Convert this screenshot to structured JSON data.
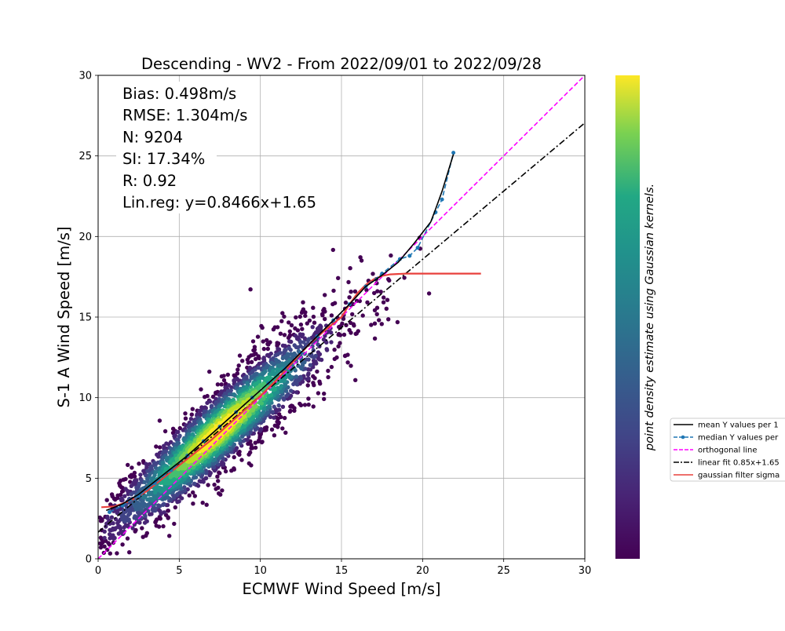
{
  "chart_data": {
    "type": "scatter",
    "title": "Descending - WV2 - From 2022/09/01 to 2022/09/28",
    "xlabel": "ECMWF Wind Speed [m/s]",
    "ylabel": "S-1 A Wind Speed [m/s]",
    "xlim": [
      0,
      30
    ],
    "ylim": [
      0,
      30
    ],
    "xticks": [
      "0",
      "5",
      "10",
      "15",
      "20",
      "25",
      "30"
    ],
    "yticks": [
      "0",
      "5",
      "10",
      "15",
      "20",
      "25",
      "30"
    ],
    "grid": true,
    "colormap": "viridis",
    "colorbar_label": "point density estimate using Gaussian kernels.",
    "legend_placement": "right, outside plot",
    "stats": [
      "Bias: 0.498m/s",
      "RMSE: 1.304m/s",
      "N: 9204",
      "SI: 17.34%",
      "R: 0.92",
      "Lin.reg: y=0.8466x+1.65"
    ],
    "series": [
      {
        "name": "mean Y values per 1",
        "style": "solid",
        "color": "#000000",
        "x": [
          0.5,
          1.5,
          2.5,
          3.5,
          4.5,
          5.5,
          6.5,
          7.5,
          8.5,
          9.5,
          10.5,
          11.5,
          12.5,
          13.5,
          14.5,
          15.5,
          16.5,
          17.5,
          18.5,
          19.5,
          20.5,
          20.8,
          21.2,
          21.9
        ],
        "y": [
          3.0,
          3.4,
          4.0,
          4.8,
          5.6,
          6.4,
          7.3,
          8.2,
          9.1,
          10.0,
          10.9,
          11.8,
          12.8,
          13.8,
          14.8,
          15.8,
          16.9,
          17.6,
          18.4,
          19.6,
          20.9,
          21.7,
          22.8,
          25.1
        ]
      },
      {
        "name": "median Y values per",
        "style": "dashed-marker",
        "color": "#1f77b4",
        "x": [
          0.7,
          1.5,
          2.5,
          3.5,
          4.5,
          5.5,
          6.5,
          7.5,
          8.5,
          9.5,
          10.5,
          11.5,
          12.5,
          13.5,
          14.5,
          15.5,
          16.5,
          17.5,
          18.6,
          19.2,
          19.7,
          20.8,
          21.2,
          21.9
        ],
        "y": [
          2.9,
          3.3,
          3.9,
          4.7,
          5.5,
          6.4,
          7.3,
          8.2,
          9.1,
          10.0,
          10.9,
          11.8,
          12.8,
          13.8,
          14.8,
          15.8,
          16.9,
          17.7,
          18.6,
          18.8,
          19.3,
          21.5,
          22.3,
          25.2
        ]
      },
      {
        "name": "orthogonal line",
        "style": "dashed",
        "color": "#ff00ff",
        "x": [
          0,
          30
        ],
        "y": [
          0,
          30
        ]
      },
      {
        "name": "linear fit 0.85x+1.65",
        "style": "dashdot",
        "color": "#000000",
        "x": [
          0,
          30
        ],
        "y": [
          1.65,
          27.05
        ]
      },
      {
        "name": "gaussian filter sigma",
        "style": "solid",
        "color": "#e8413c",
        "x": [
          0.2,
          1,
          2,
          3,
          4,
          5,
          6,
          7,
          8,
          9,
          10,
          11,
          12,
          13,
          14,
          15,
          15.5,
          16,
          16.5,
          17,
          17.5,
          18,
          19,
          20,
          21,
          22,
          23,
          23.6
        ],
        "y": [
          3.2,
          3.25,
          3.6,
          4.2,
          5.0,
          5.8,
          6.6,
          7.4,
          8.3,
          9.2,
          10.1,
          11.1,
          12.2,
          13.3,
          14.2,
          15.0,
          15.8,
          16.5,
          17.0,
          17.35,
          17.55,
          17.65,
          17.7,
          17.7,
          17.7,
          17.7,
          17.7,
          17.7
        ]
      }
    ]
  }
}
